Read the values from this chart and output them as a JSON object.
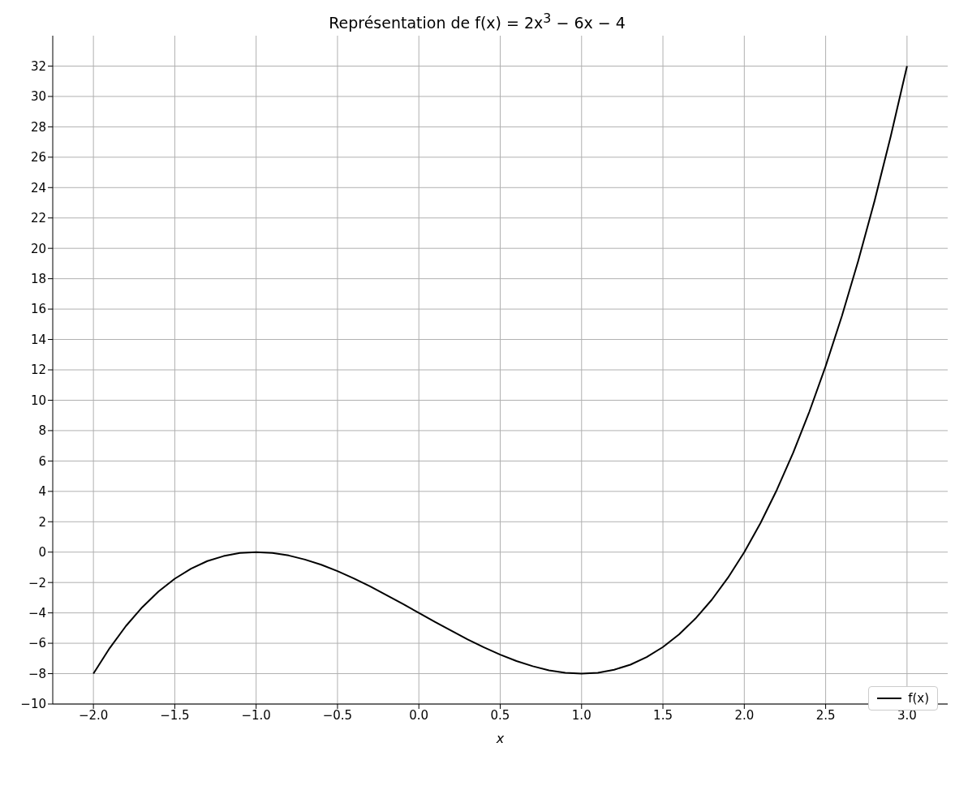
{
  "chart_data": {
    "type": "line",
    "title": "Représentation de f(x) = 2x$^{3}$ − 6x − 4",
    "xlabel": "x",
    "x": [
      -2,
      -1.9,
      -1.8,
      -1.7,
      -1.6,
      -1.5,
      -1.4,
      -1.3,
      -1.2,
      -1.1,
      -1,
      -0.9,
      -0.8,
      -0.7,
      -0.6,
      -0.5,
      -0.4,
      -0.3,
      -0.2,
      -0.1,
      0,
      0.1,
      0.2,
      0.3,
      0.4,
      0.5,
      0.6,
      0.7,
      0.8,
      0.9,
      1,
      1.1,
      1.2,
      1.3,
      1.4,
      1.5,
      1.6,
      1.7,
      1.8,
      1.9,
      2,
      2.1,
      2.2,
      2.3,
      2.4,
      2.5,
      2.6,
      2.7,
      2.8,
      2.9,
      3
    ],
    "series": [
      {
        "name": "f(x)",
        "color": "#000000",
        "values": [
          -8,
          -6.32,
          -4.86,
          -3.63,
          -2.59,
          -1.75,
          -1.09,
          -0.59,
          -0.26,
          -0.06,
          0,
          -0.06,
          -0.22,
          -0.49,
          -0.83,
          -1.25,
          -1.73,
          -2.25,
          -2.82,
          -3.4,
          -4,
          -4.6,
          -5.18,
          -5.75,
          -6.27,
          -6.75,
          -7.17,
          -7.51,
          -7.78,
          -7.94,
          -8,
          -7.94,
          -7.74,
          -7.41,
          -6.91,
          -6.25,
          -5.41,
          -4.37,
          -3.14,
          -1.68,
          0,
          1.92,
          4.1,
          6.53,
          9.25,
          12.25,
          15.55,
          19.17,
          23.1,
          27.38,
          32
        ]
      }
    ],
    "xlim": [
      -2.25,
      3.25
    ],
    "ylim": [
      -10,
      34
    ],
    "xticks": [
      {
        "value": -2,
        "label": "−2.0"
      },
      {
        "value": -1.5,
        "label": "−1.5"
      },
      {
        "value": -1,
        "label": "−1.0"
      },
      {
        "value": -0.5,
        "label": "−0.5"
      },
      {
        "value": 0,
        "label": "0.0"
      },
      {
        "value": 0.5,
        "label": "0.5"
      },
      {
        "value": 1,
        "label": "1.0"
      },
      {
        "value": 1.5,
        "label": "1.5"
      },
      {
        "value": 2,
        "label": "2.0"
      },
      {
        "value": 2.5,
        "label": "2.5"
      },
      {
        "value": 3,
        "label": "3.0"
      }
    ],
    "yticks": [
      {
        "value": -10,
        "label": "−10"
      },
      {
        "value": -8,
        "label": "−8"
      },
      {
        "value": -6,
        "label": "−6"
      },
      {
        "value": -4,
        "label": "−4"
      },
      {
        "value": -2,
        "label": "−2"
      },
      0,
      2,
      4,
      6,
      8,
      10,
      12,
      14,
      16,
      18,
      20,
      22,
      24,
      26,
      28,
      30,
      32
    ],
    "grid": true,
    "legend": "bottom right",
    "marker": "none",
    "line_style": "solid"
  }
}
